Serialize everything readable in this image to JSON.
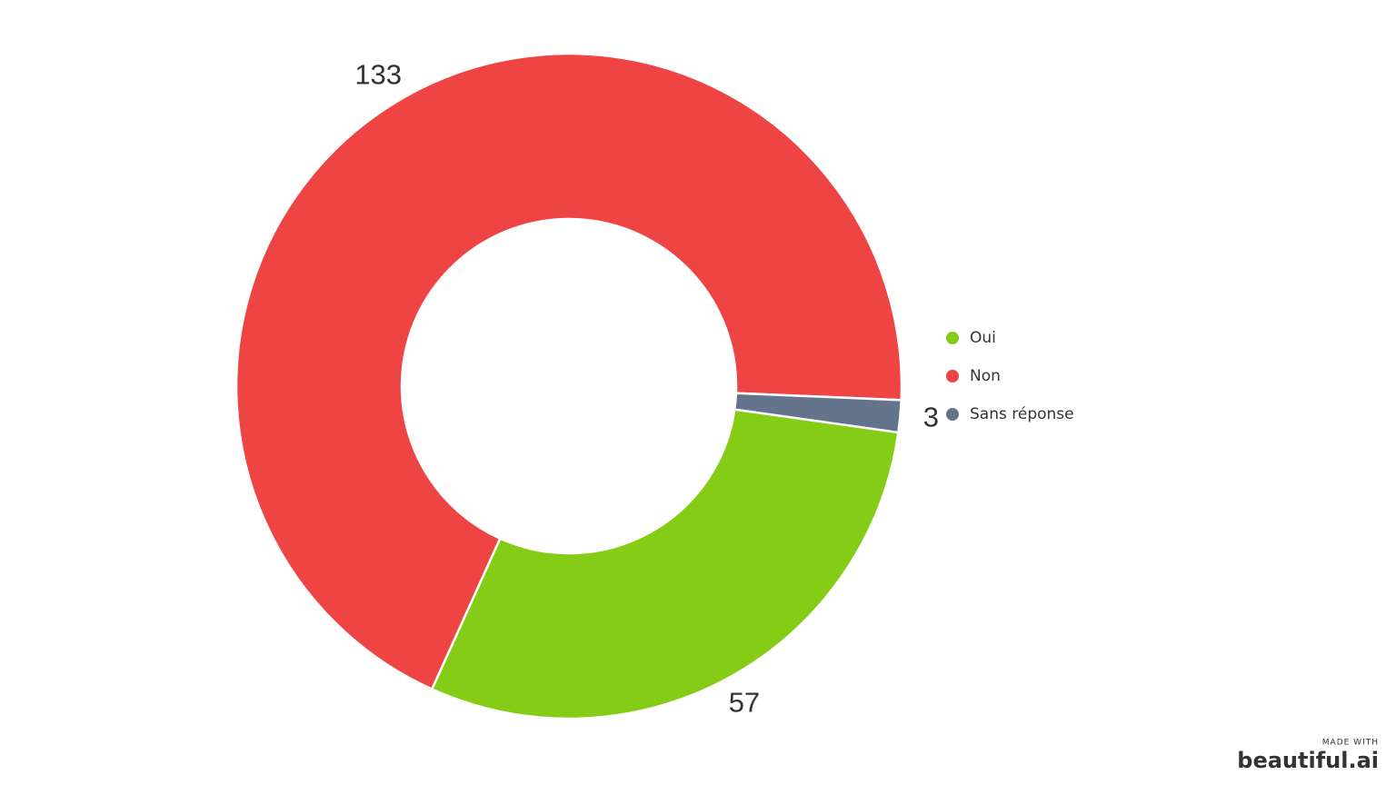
{
  "chart_data": {
    "type": "donut",
    "categories": [
      "Oui",
      "Non",
      "Sans réponse"
    ],
    "values": [
      57,
      133,
      3
    ],
    "colors": [
      "#84cc16",
      "#ef4444",
      "#64748b"
    ],
    "legend": "right"
  },
  "watermark": {
    "made_with": "MADE WITH",
    "brand": "beautiful.ai"
  }
}
